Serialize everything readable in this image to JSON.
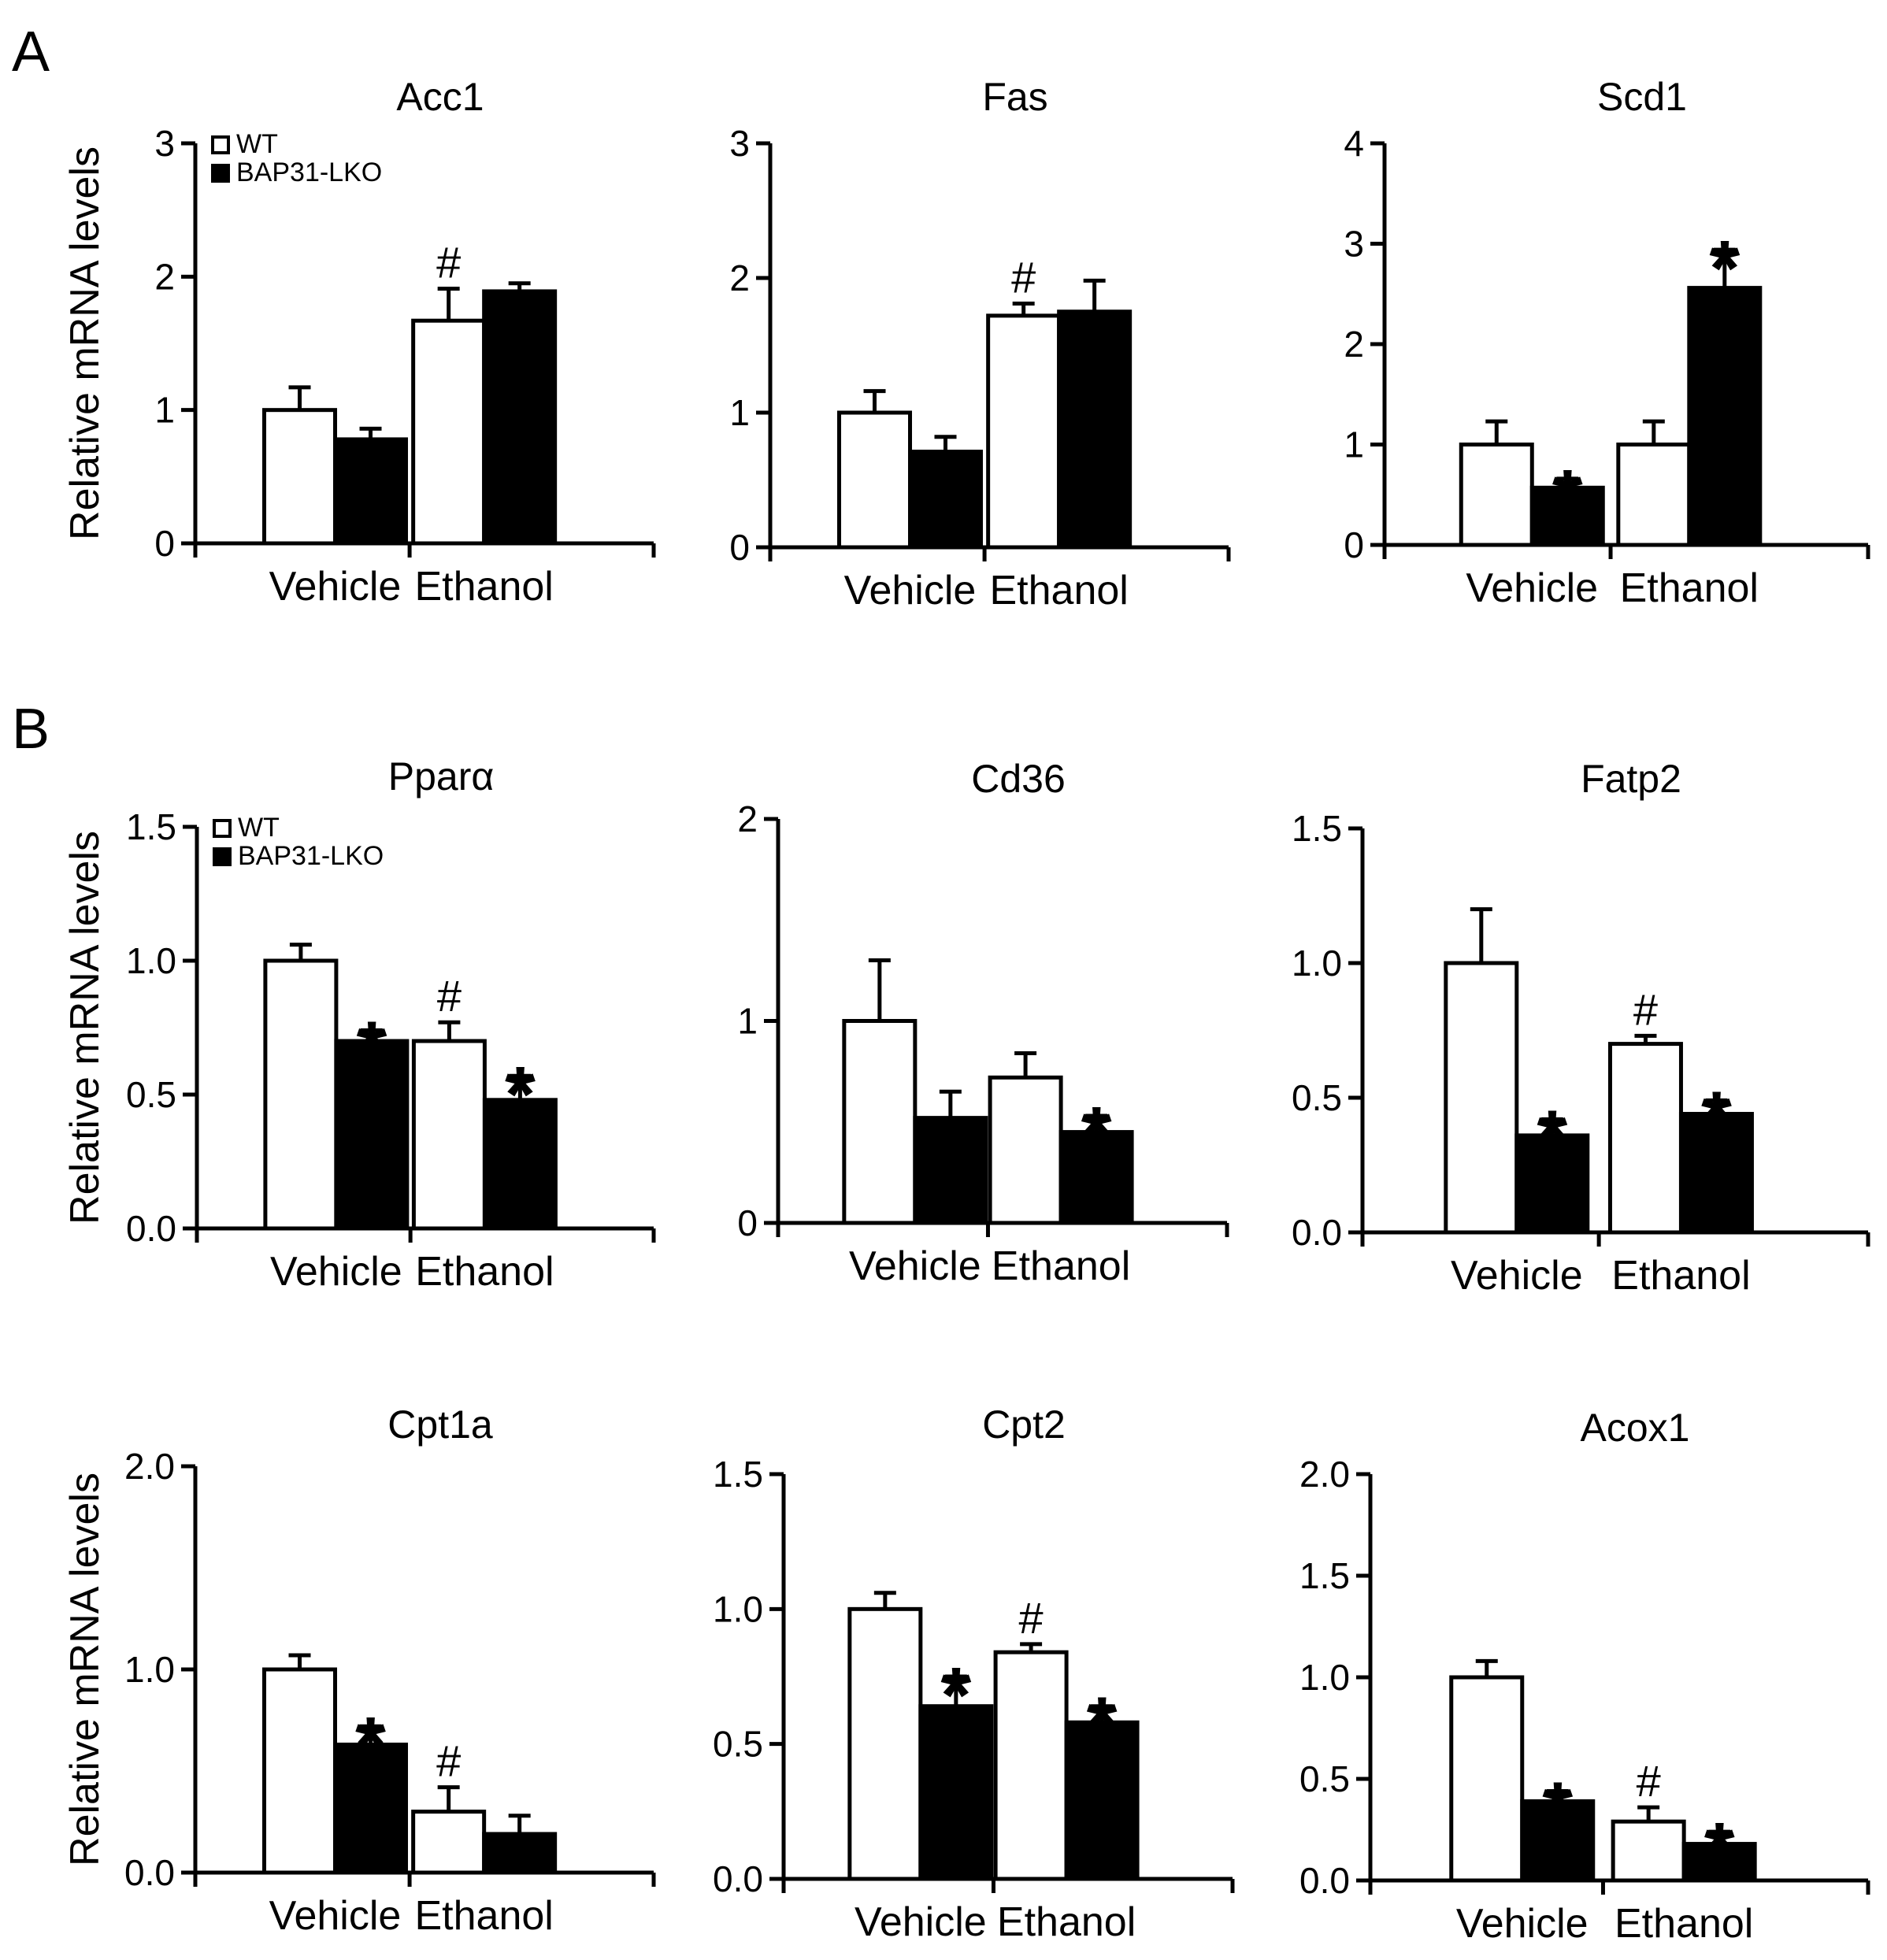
{
  "panel_letters": [
    "A",
    "B"
  ],
  "legend": {
    "wt": "WT",
    "ko": "BAP31-LKO"
  },
  "colors": {
    "wt_fill": "#ffffff",
    "ko_fill": "#000000",
    "stroke": "#000000"
  },
  "chart_data": [
    {
      "type": "bar",
      "title": "Acc1",
      "ylabel": "Relative mRNA levels",
      "categories": [
        "Vehicle",
        "Ethanol"
      ],
      "ylim": [
        0,
        3
      ],
      "yticks": [
        "0",
        "1",
        "2",
        "3"
      ],
      "yticks_values": [
        0,
        1,
        2,
        3
      ],
      "show_legend": true,
      "series": [
        {
          "name": "WT",
          "values": [
            1.0,
            1.67
          ],
          "errors": [
            0.17,
            0.24
          ],
          "marks": [
            "",
            "#"
          ]
        },
        {
          "name": "BAP31-LKO",
          "values": [
            0.78,
            1.89
          ],
          "errors": [
            0.08,
            0.06
          ],
          "marks": [
            "",
            ""
          ]
        }
      ]
    },
    {
      "type": "bar",
      "title": "Fas",
      "ylabel": "",
      "categories": [
        "Vehicle",
        "Ethanol"
      ],
      "ylim": [
        0,
        3
      ],
      "yticks": [
        "0",
        "1",
        "2",
        "3"
      ],
      "yticks_values": [
        0,
        1,
        2,
        3
      ],
      "show_legend": false,
      "series": [
        {
          "name": "WT",
          "values": [
            1.0,
            1.72
          ],
          "errors": [
            0.16,
            0.09
          ],
          "marks": [
            "",
            "#"
          ]
        },
        {
          "name": "BAP31-LKO",
          "values": [
            0.71,
            1.75
          ],
          "errors": [
            0.11,
            0.23
          ],
          "marks": [
            "",
            ""
          ]
        }
      ]
    },
    {
      "type": "bar",
      "title": "Scd1",
      "ylabel": "",
      "categories": [
        "Vehicle",
        "Ethanol"
      ],
      "ylim": [
        0,
        4
      ],
      "yticks": [
        "0",
        "1",
        "2",
        "3",
        "4"
      ],
      "yticks_values": [
        0,
        1,
        2,
        3,
        4
      ],
      "show_legend": false,
      "series": [
        {
          "name": "WT",
          "values": [
            1.0,
            1.0
          ],
          "errors": [
            0.23,
            0.23
          ],
          "marks": [
            "",
            ""
          ]
        },
        {
          "name": "BAP31-LKO",
          "values": [
            0.57,
            2.56
          ],
          "errors": [
            0.09,
            0.38
          ],
          "marks": [
            "*",
            "*"
          ]
        }
      ]
    },
    {
      "type": "bar",
      "title": "Pparα",
      "ylabel": "Relative mRNA levels",
      "categories": [
        "Vehicle",
        "Ethanol"
      ],
      "ylim": [
        0,
        1.5
      ],
      "yticks": [
        "0.0",
        "0.5",
        "1.0",
        "1.5"
      ],
      "yticks_values": [
        0,
        0.5,
        1.0,
        1.5
      ],
      "show_legend": true,
      "series": [
        {
          "name": "WT",
          "values": [
            1.0,
            0.7
          ],
          "errors": [
            0.06,
            0.07
          ],
          "marks": [
            "",
            "#"
          ]
        },
        {
          "name": "BAP31-LKO",
          "values": [
            0.7,
            0.48
          ],
          "errors": [
            0.04,
            0.09
          ],
          "marks": [
            "*",
            "*"
          ]
        }
      ]
    },
    {
      "type": "bar",
      "title": "Cd36",
      "ylabel": "",
      "categories": [
        "Vehicle",
        "Ethanol"
      ],
      "ylim": [
        0,
        2
      ],
      "yticks": [
        "0",
        "1",
        "2"
      ],
      "yticks_values": [
        0,
        1,
        2
      ],
      "show_legend": false,
      "series": [
        {
          "name": "WT",
          "values": [
            1.0,
            0.72
          ],
          "errors": [
            0.3,
            0.12
          ],
          "marks": [
            "",
            ""
          ]
        },
        {
          "name": "BAP31-LKO",
          "values": [
            0.52,
            0.45
          ],
          "errors": [
            0.13,
            0.08
          ],
          "marks": [
            "",
            "*"
          ]
        }
      ]
    },
    {
      "type": "bar",
      "title": "Fatp2",
      "ylabel": "",
      "categories": [
        "Vehicle",
        "Ethanol"
      ],
      "ylim": [
        0,
        1.5
      ],
      "yticks": [
        "0.0",
        "0.5",
        "1.0",
        "1.5"
      ],
      "yticks_values": [
        0,
        0.5,
        1.0,
        1.5
      ],
      "show_legend": false,
      "series": [
        {
          "name": "WT",
          "values": [
            1.0,
            0.7
          ],
          "errors": [
            0.2,
            0.03
          ],
          "marks": [
            "",
            "#"
          ]
        },
        {
          "name": "BAP31-LKO",
          "values": [
            0.36,
            0.44
          ],
          "errors": [
            0.06,
            0.05
          ],
          "marks": [
            "*",
            "*"
          ]
        }
      ]
    },
    {
      "type": "bar",
      "title": "Cpt1a",
      "ylabel": "Relative mRNA levels",
      "categories": [
        "Vehicle",
        "Ethanol"
      ],
      "ylim": [
        0,
        2.0
      ],
      "yticks": [
        "0.0",
        "1.0",
        "2.0"
      ],
      "yticks_values": [
        0,
        1.0,
        2.0
      ],
      "show_legend": false,
      "series": [
        {
          "name": "WT",
          "values": [
            1.0,
            0.3
          ],
          "errors": [
            0.07,
            0.12
          ],
          "marks": [
            "",
            "#"
          ]
        },
        {
          "name": "BAP31-LKO",
          "values": [
            0.63,
            0.19
          ],
          "errors": [
            0.09,
            0.09
          ],
          "marks": [
            "*",
            ""
          ]
        }
      ]
    },
    {
      "type": "bar",
      "title": "Cpt2",
      "ylabel": "",
      "categories": [
        "Vehicle",
        "Ethanol"
      ],
      "ylim": [
        0,
        1.5
      ],
      "yticks": [
        "0.0",
        "0.5",
        "1.0",
        "1.5"
      ],
      "yticks_values": [
        0,
        0.5,
        1.0,
        1.5
      ],
      "show_legend": false,
      "series": [
        {
          "name": "WT",
          "values": [
            1.0,
            0.84
          ],
          "errors": [
            0.06,
            0.03
          ],
          "marks": [
            "",
            "#"
          ]
        },
        {
          "name": "BAP31-LKO",
          "values": [
            0.64,
            0.58
          ],
          "errors": [
            0.11,
            0.06
          ],
          "marks": [
            "*",
            "*"
          ]
        }
      ]
    },
    {
      "type": "bar",
      "title": "Acox1",
      "ylabel": "",
      "categories": [
        "Vehicle",
        "Ethanol"
      ],
      "ylim": [
        0,
        2.0
      ],
      "yticks": [
        "0.0",
        "0.5",
        "1.0",
        "1.5",
        "2.0"
      ],
      "yticks_values": [
        0,
        0.5,
        1.0,
        1.5,
        2.0
      ],
      "show_legend": false,
      "series": [
        {
          "name": "WT",
          "values": [
            1.0,
            0.29
          ],
          "errors": [
            0.08,
            0.07
          ],
          "marks": [
            "",
            "#"
          ]
        },
        {
          "name": "BAP31-LKO",
          "values": [
            0.39,
            0.18
          ],
          "errors": [
            0.05,
            0.06
          ],
          "marks": [
            "*",
            "*"
          ]
        }
      ]
    }
  ]
}
